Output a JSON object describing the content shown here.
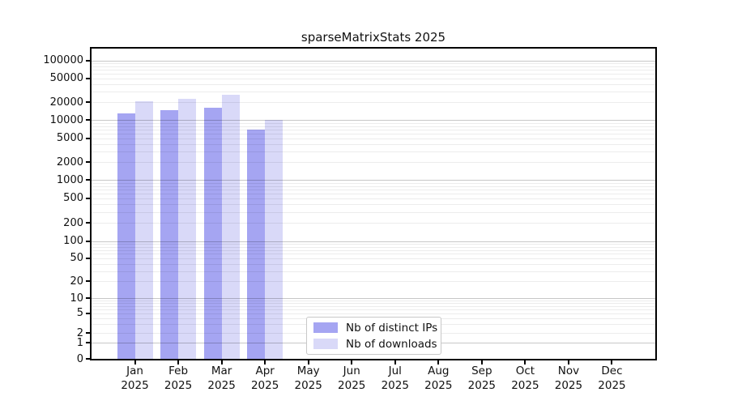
{
  "title": "sparseMatrixStats 2025",
  "chart_data": {
    "type": "bar",
    "title": "sparseMatrixStats 2025",
    "categories": [
      "Jan",
      "Feb",
      "Mar",
      "Apr",
      "May",
      "Jun",
      "Jul",
      "Aug",
      "Sep",
      "Oct",
      "Nov",
      "Dec"
    ],
    "x_year_label": "2025",
    "series": [
      {
        "name": "Nb of distinct IPs",
        "color": "#a5a5f2",
        "values": [
          13000,
          14500,
          16000,
          7000,
          null,
          null,
          null,
          null,
          null,
          null,
          null,
          null
        ]
      },
      {
        "name": "Nb of downloads",
        "color": "#d9d9f8",
        "values": [
          21000,
          23000,
          27000,
          10200,
          null,
          null,
          null,
          null,
          null,
          null,
          null,
          null
        ]
      }
    ],
    "y_ticks": [
      0,
      1,
      2,
      5,
      10,
      20,
      50,
      100,
      200,
      500,
      1000,
      2000,
      5000,
      10000,
      20000,
      50000,
      100000
    ],
    "y_scale": "asinh-log",
    "ylim": [
      0,
      100000
    ],
    "xlabel": "",
    "ylabel": "",
    "grid": "horizontal log minor+major, drawn over bars",
    "legend_position": "lower center"
  },
  "legend": {
    "items": [
      {
        "label": "Nb of distinct IPs",
        "color": "#a5a5f2"
      },
      {
        "label": "Nb of downloads",
        "color": "#d9d9f8"
      }
    ]
  }
}
